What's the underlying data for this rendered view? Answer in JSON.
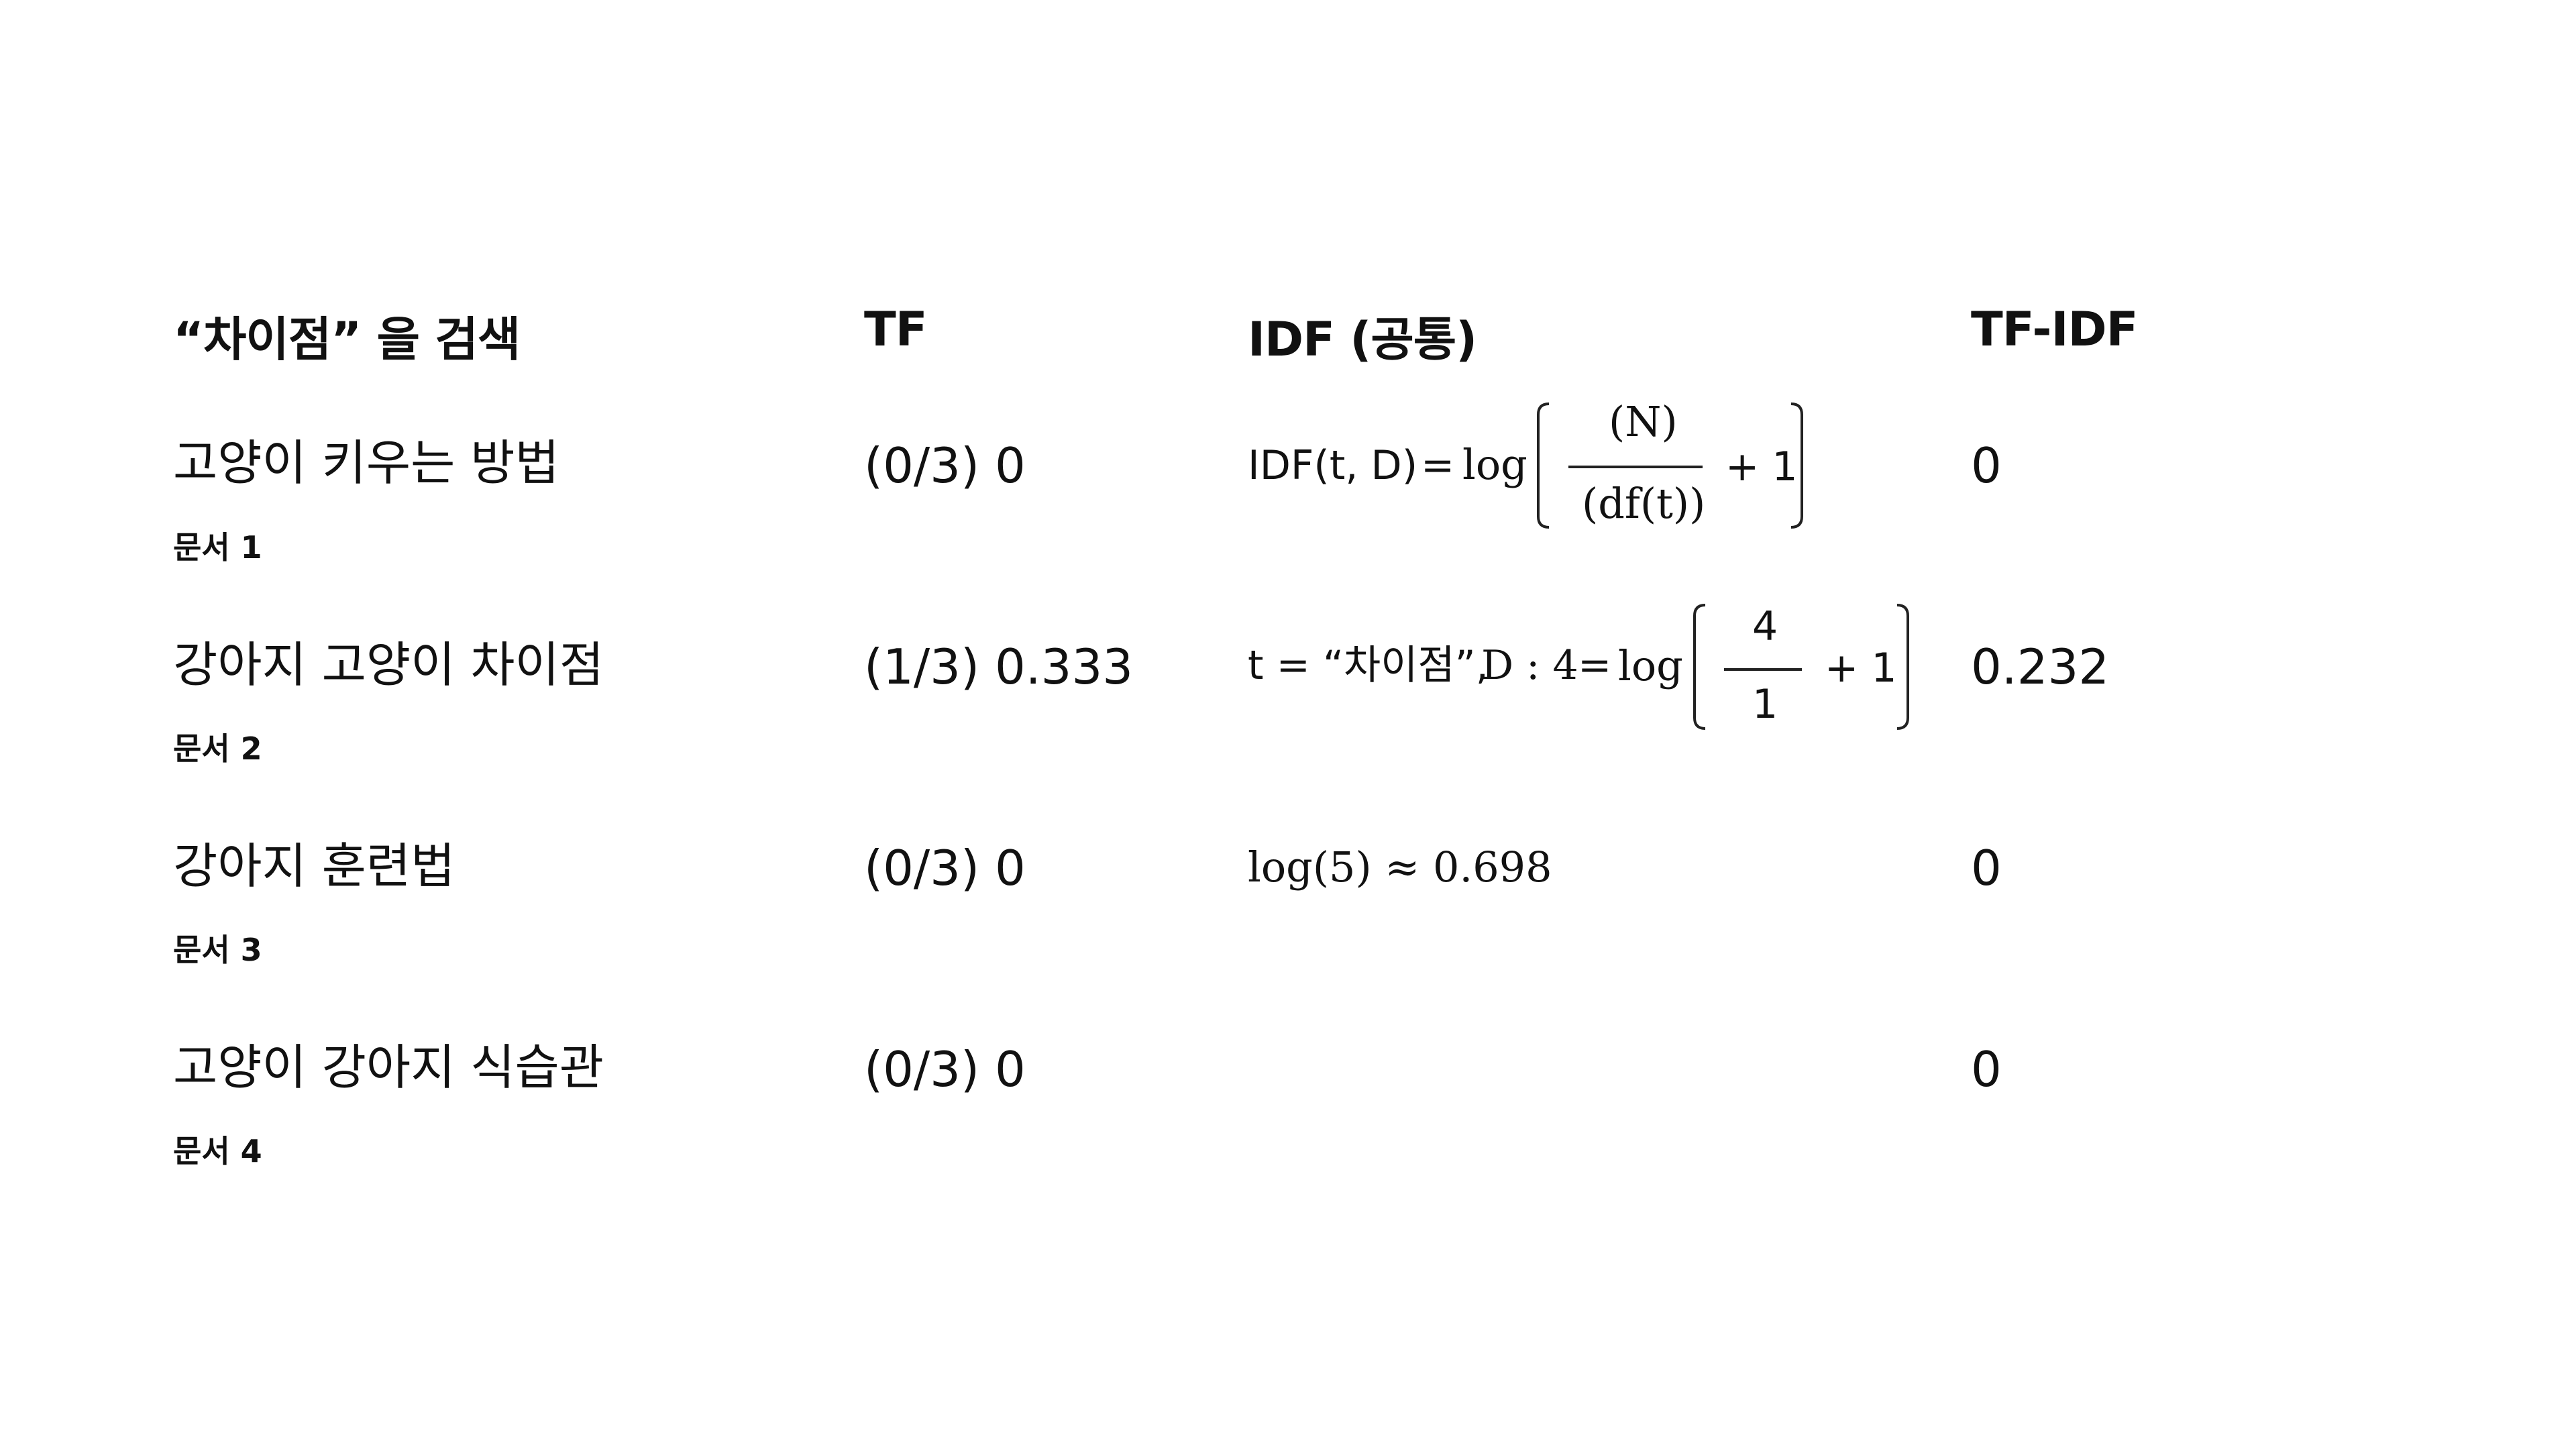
{
  "headers": {
    "query": "“차이점” 을 검색",
    "tf": "TF",
    "idf": "IDF (공통)",
    "tfidf": "TF-IDF"
  },
  "rows": [
    {
      "title": "고양이 키우는 방법",
      "doc": "문서 1",
      "tf": "(0/3) 0",
      "tfidf": "0"
    },
    {
      "title": "강아지 고양이 차이점",
      "doc": "문서 2",
      "tf": "(1/3) 0.333",
      "tfidf": "0.232"
    },
    {
      "title": "강아지 훈련법",
      "doc": "문서 3",
      "tf": "(0/3) 0",
      "tfidf": "0"
    },
    {
      "title": "고양이 강아지 식습관",
      "doc": "문서 4",
      "tf": "(0/3) 0",
      "tfidf": "0"
    }
  ],
  "formula": {
    "line1": {
      "lhs": "IDF(t, D)",
      "eq": "=",
      "log": "log",
      "num": "(N)",
      "den": "(df(t))",
      "plus": "+ 1"
    },
    "line2": {
      "t_part": "t = “차이점”,",
      "d_part": "D : 4",
      "eq": "=",
      "log": "log",
      "num": "4",
      "den": "1",
      "plus": "+ 1"
    },
    "line3": "log(5) ≈ 0.698"
  }
}
